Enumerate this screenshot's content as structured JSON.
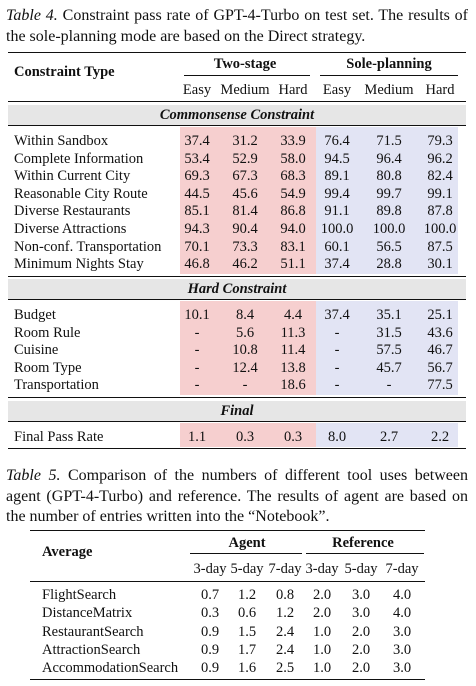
{
  "table4": {
    "label": "Table 4.",
    "caption": "Constraint pass rate of GPT-4-Turbo on test set. The results of the sole-planning mode are based on the Direct strategy.",
    "header": {
      "row_label": "Constraint Type",
      "groups": [
        "Two-stage",
        "Sole-planning"
      ],
      "levels": [
        "Easy",
        "Medium",
        "Hard",
        "Easy",
        "Medium",
        "Hard"
      ]
    },
    "sections": [
      {
        "title": "Commonsense Constraint",
        "rows": [
          {
            "label": "Within Sandbox",
            "cells": [
              "37.4",
              "31.2",
              "33.9",
              "76.4",
              "71.5",
              "79.3"
            ]
          },
          {
            "label": "Complete Information",
            "cells": [
              "53.4",
              "52.9",
              "58.0",
              "94.5",
              "96.4",
              "96.2"
            ]
          },
          {
            "label": "Within Current City",
            "cells": [
              "69.3",
              "67.3",
              "68.3",
              "89.1",
              "80.8",
              "82.4"
            ]
          },
          {
            "label": "Reasonable City Route",
            "cells": [
              "44.5",
              "45.6",
              "54.9",
              "99.4",
              "99.7",
              "99.1"
            ]
          },
          {
            "label": "Diverse Restaurants",
            "cells": [
              "85.1",
              "81.4",
              "86.8",
              "91.1",
              "89.8",
              "87.8"
            ]
          },
          {
            "label": "Diverse Attractions",
            "cells": [
              "94.3",
              "90.4",
              "94.0",
              "100.0",
              "100.0",
              "100.0"
            ]
          },
          {
            "label": "Non-conf. Transportation",
            "cells": [
              "70.1",
              "73.3",
              "83.1",
              "60.1",
              "56.5",
              "87.5"
            ]
          },
          {
            "label": "Minimum Nights Stay",
            "cells": [
              "46.8",
              "46.2",
              "51.1",
              "37.4",
              "28.8",
              "30.1"
            ]
          }
        ]
      },
      {
        "title": "Hard Constraint",
        "rows": [
          {
            "label": "Budget",
            "cells": [
              "10.1",
              "8.4",
              "4.4",
              "37.4",
              "35.1",
              "25.1"
            ]
          },
          {
            "label": "Room Rule",
            "cells": [
              "-",
              "5.6",
              "11.3",
              "-",
              "31.5",
              "43.6"
            ]
          },
          {
            "label": "Cuisine",
            "cells": [
              "-",
              "10.8",
              "11.4",
              "-",
              "57.5",
              "46.7"
            ]
          },
          {
            "label": "Room Type",
            "cells": [
              "-",
              "12.4",
              "13.8",
              "-",
              "45.7",
              "56.7"
            ]
          },
          {
            "label": "Transportation",
            "cells": [
              "-",
              "-",
              "18.6",
              "-",
              "-",
              "77.5"
            ]
          }
        ]
      },
      {
        "title": "Final",
        "rows": [
          {
            "label": "Final Pass Rate",
            "cells": [
              "1.1",
              "0.3",
              "0.3",
              "8.0",
              "2.7",
              "2.2"
            ]
          }
        ]
      }
    ]
  },
  "table5": {
    "label": "Table 5.",
    "caption": "Comparison of the numbers of different tool uses between agent (GPT-4-Turbo) and reference. The results of agent are based on the number of entries written into the “Notebook”.",
    "header": {
      "row_label": "Average",
      "groups": [
        "Agent",
        "Reference"
      ],
      "levels": [
        "3-day",
        "5-day",
        "7-day",
        "3-day",
        "5-day",
        "7-day"
      ]
    },
    "rows": [
      {
        "label": "FlightSearch",
        "cells": [
          "0.7",
          "1.2",
          "0.8",
          "2.0",
          "3.0",
          "4.0"
        ]
      },
      {
        "label": "DistanceMatrix",
        "cells": [
          "0.3",
          "0.6",
          "1.2",
          "2.0",
          "3.0",
          "4.0"
        ]
      },
      {
        "label": "RestaurantSearch",
        "cells": [
          "0.9",
          "1.5",
          "2.4",
          "1.0",
          "2.0",
          "3.0"
        ]
      },
      {
        "label": "AttractionSearch",
        "cells": [
          "0.9",
          "1.7",
          "2.4",
          "1.0",
          "2.0",
          "3.0"
        ]
      },
      {
        "label": "AccommodationSearch",
        "cells": [
          "0.9",
          "1.6",
          "2.5",
          "1.0",
          "2.0",
          "3.0"
        ]
      }
    ]
  }
}
